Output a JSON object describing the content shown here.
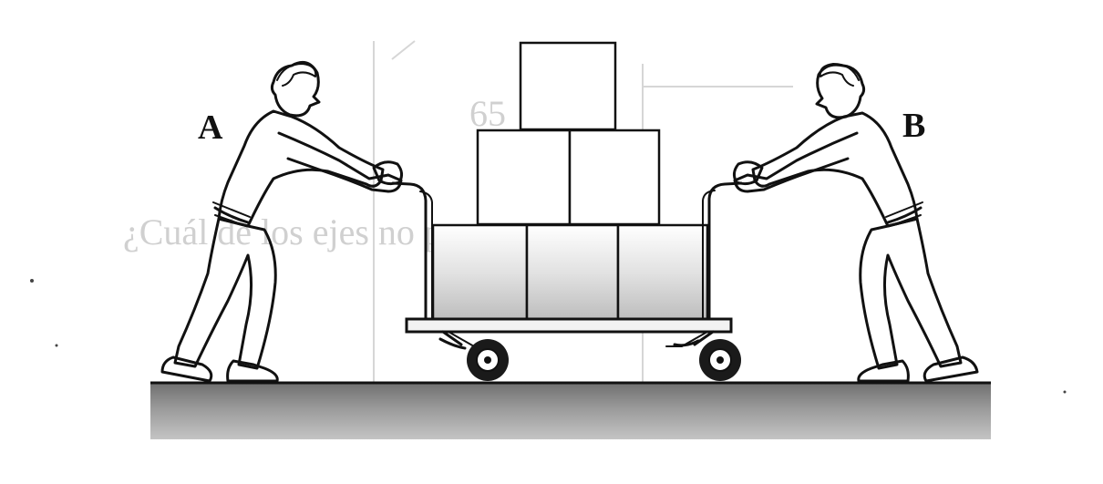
{
  "figure": {
    "labels": {
      "person_a": "A",
      "person_b": "B"
    }
  }
}
